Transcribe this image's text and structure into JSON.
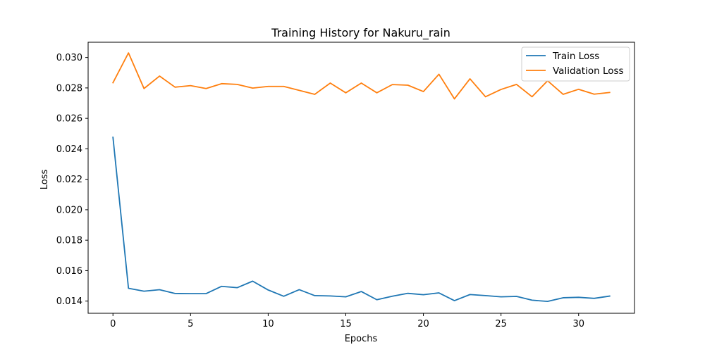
{
  "chart_data": {
    "type": "line",
    "title": "Training History for Nakuru_rain",
    "xlabel": "Epochs",
    "ylabel": "Loss",
    "xlim": [
      -1.6,
      33.6
    ],
    "ylim": [
      0.0132,
      0.031
    ],
    "xticks": [
      0,
      5,
      10,
      15,
      20,
      25,
      30
    ],
    "yticks": [
      0.014,
      0.016,
      0.018,
      0.02,
      0.022,
      0.024,
      0.026,
      0.028,
      0.03
    ],
    "ytick_labels": [
      "0.014",
      "0.016",
      "0.018",
      "0.020",
      "0.022",
      "0.024",
      "0.026",
      "0.028",
      "0.030"
    ],
    "legend_position": "top-right",
    "grid": false,
    "x": [
      0,
      1,
      2,
      3,
      4,
      5,
      6,
      7,
      8,
      9,
      10,
      11,
      12,
      13,
      14,
      15,
      16,
      17,
      18,
      19,
      20,
      21,
      22,
      23,
      24,
      25,
      26,
      27,
      28,
      29,
      30,
      31,
      32
    ],
    "series": [
      {
        "name": "Train Loss",
        "color": "#1f77b4",
        "values": [
          0.02476,
          0.01484,
          0.01465,
          0.01475,
          0.0145,
          0.01449,
          0.01449,
          0.01497,
          0.01488,
          0.01531,
          0.01473,
          0.01432,
          0.01475,
          0.01436,
          0.01434,
          0.01428,
          0.01463,
          0.01409,
          0.01432,
          0.01451,
          0.01442,
          0.01454,
          0.01403,
          0.01443,
          0.01436,
          0.01428,
          0.01431,
          0.01406,
          0.01398,
          0.01422,
          0.01425,
          0.01418,
          0.01433
        ]
      },
      {
        "name": "Validation Loss",
        "color": "#ff7f0e",
        "values": [
          0.02834,
          0.0303,
          0.02796,
          0.02878,
          0.02805,
          0.02815,
          0.02796,
          0.02828,
          0.02823,
          0.02799,
          0.0281,
          0.0281,
          0.02784,
          0.02758,
          0.02832,
          0.02768,
          0.02832,
          0.02768,
          0.02822,
          0.02818,
          0.02776,
          0.0289,
          0.02728,
          0.0286,
          0.02742,
          0.0279,
          0.02823,
          0.02742,
          0.02847,
          0.02758,
          0.02791,
          0.02759,
          0.0277
        ]
      }
    ]
  }
}
